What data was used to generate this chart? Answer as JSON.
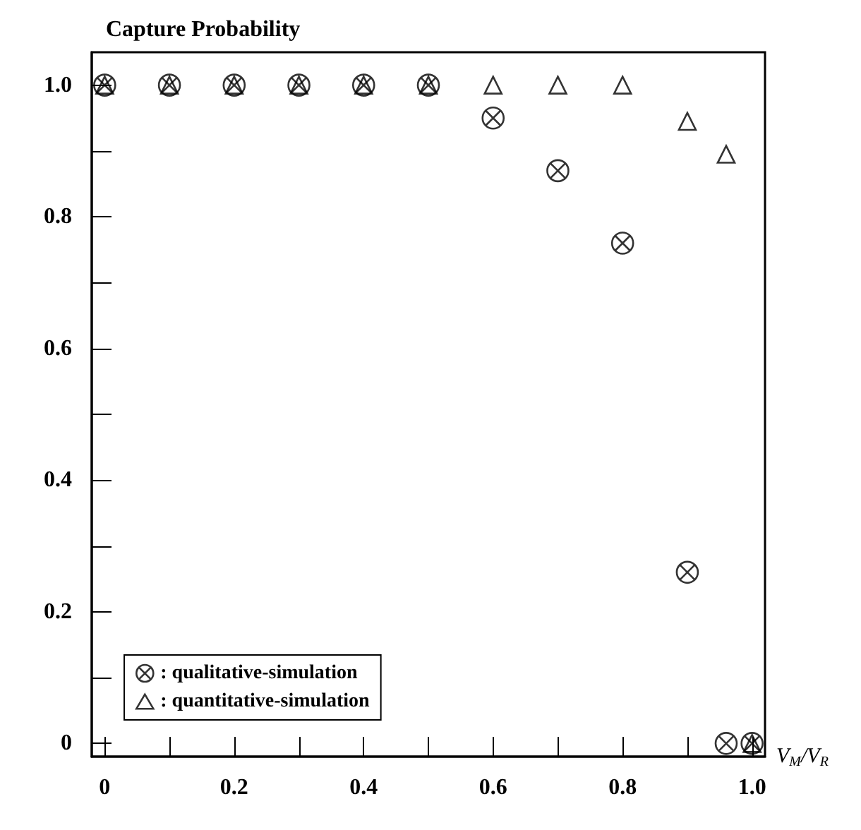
{
  "chart_data": {
    "type": "scatter",
    "title": "Capture Probability",
    "xlabel": "V$_{M}$/V$_{R}$",
    "x": [
      0,
      0.1,
      0.2,
      0.3,
      0.4,
      0.5,
      0.6,
      0.7,
      0.8,
      0.9,
      0.96,
      1.0
    ],
    "series": [
      {
        "name": ": qualitative-simulation",
        "color": "#000000",
        "marker": "cross",
        "values": [
          1,
          1,
          1,
          1,
          1,
          1,
          0.95,
          0.87,
          0.76,
          0.26,
          0,
          0
        ]
      },
      {
        "name": ": quantitative-simulation",
        "color": "#000000",
        "marker": "triangle",
        "values": [
          1,
          1,
          1,
          1,
          1,
          1,
          1,
          1,
          1,
          0.945,
          0.895,
          0
        ]
      }
    ],
    "xlim": [
      -0.02,
      1.02
    ],
    "ylim": [
      -0.02,
      1.05
    ],
    "xticks": [
      0,
      {
        "value": 0.1,
        "label": null
      },
      0.2,
      {
        "value": 0.3,
        "label": null
      },
      0.4,
      {
        "value": 0.5,
        "label": null
      },
      0.6,
      {
        "value": 0.7,
        "label": null
      },
      0.8,
      {
        "value": 0.9,
        "label": null
      },
      {
        "value": 1,
        "label": "1.0"
      }
    ],
    "yticks": [
      0,
      {
        "value": 0.1,
        "label": null
      },
      0.2,
      {
        "value": 0.3,
        "label": null
      },
      0.4,
      {
        "value": 0.5,
        "label": null
      },
      0.6,
      {
        "value": 0.7,
        "label": null
      },
      0.8,
      {
        "value": 0.9,
        "label": null
      },
      {
        "value": 1,
        "label": "1.0"
      }
    ],
    "grid": false,
    "legend": "bottom left"
  }
}
